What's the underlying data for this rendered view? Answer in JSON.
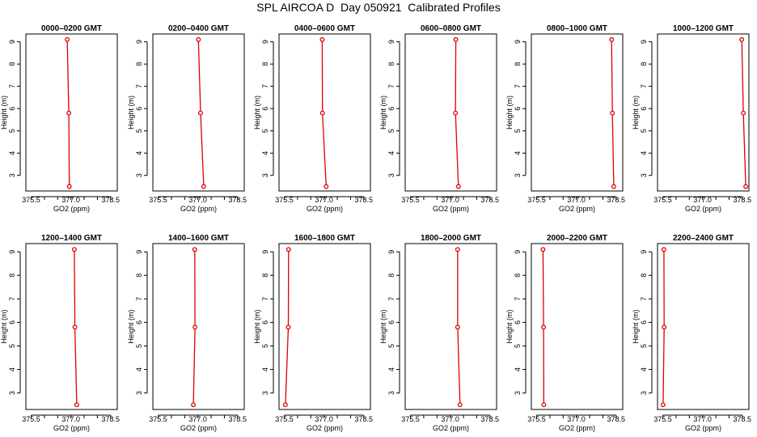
{
  "title": "SPL AIRCOA D  Day 050921  Calibrated Profiles",
  "colors": {
    "series": "#dd0000",
    "axis": "#000000"
  },
  "chart_data": {
    "type": "line",
    "xlabel": "GO2 (ppm)",
    "ylabel": "Height (m)",
    "xlim": [
      375.3,
      378.75
    ],
    "ylim": [
      2.3,
      9.35
    ],
    "xticks": [
      "375.5",
      "376.0",
      "376.5",
      "377.0",
      "377.5",
      "378.0",
      "378.5"
    ],
    "xtick_values": [
      375.5,
      376.0,
      376.5,
      377.0,
      377.5,
      378.0,
      378.5
    ],
    "xtick_labels_shown": [
      "375.5",
      "377.0",
      "378.5"
    ],
    "yticks": [
      "3",
      "4",
      "5",
      "6",
      "7",
      "8",
      "9"
    ],
    "ytick_values": [
      3,
      4,
      5,
      6,
      7,
      8,
      9
    ],
    "heights": [
      9.1,
      5.8,
      2.5
    ],
    "panels": [
      {
        "title": "0000–0200 GMT",
        "x": [
          376.86,
          376.92,
          376.94
        ]
      },
      {
        "title": "0200–0400 GMT",
        "x": [
          377.02,
          377.1,
          377.22
        ]
      },
      {
        "title": "0400–0600 GMT",
        "x": [
          376.93,
          376.94,
          377.08
        ]
      },
      {
        "title": "0600–0800 GMT",
        "x": [
          377.21,
          377.2,
          377.31
        ]
      },
      {
        "title": "0800–1000 GMT",
        "x": [
          378.33,
          378.36,
          378.41
        ]
      },
      {
        "title": "1000–1200 GMT",
        "x": [
          378.48,
          378.54,
          378.63
        ]
      },
      {
        "title": "1200–1400 GMT",
        "x": [
          377.13,
          377.15,
          377.22
        ]
      },
      {
        "title": "1400–1600 GMT",
        "x": [
          376.88,
          376.89,
          376.83
        ]
      },
      {
        "title": "1600–1800 GMT",
        "x": [
          375.66,
          375.65,
          375.54
        ]
      },
      {
        "title": "1800–2000 GMT",
        "x": [
          377.28,
          377.28,
          377.37
        ]
      },
      {
        "title": "2000–2200 GMT",
        "x": [
          375.74,
          375.76,
          375.77
        ]
      },
      {
        "title": "2200–2400 GMT",
        "x": [
          375.54,
          375.55,
          375.51
        ]
      }
    ]
  }
}
